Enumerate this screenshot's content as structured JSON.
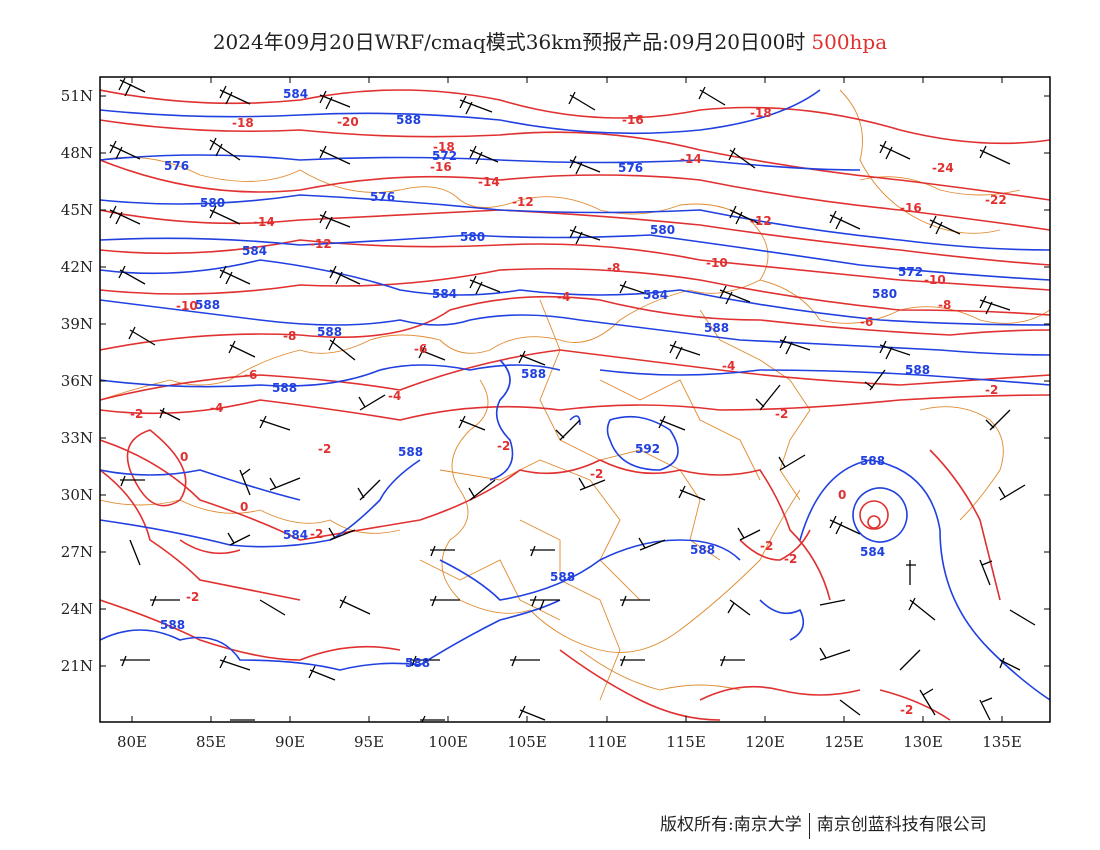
{
  "header": {
    "title": "2024年09月20日WRF/cmaq模式36km预报产品:09月20日00时",
    "level": "500hpa"
  },
  "colors": {
    "height_contour": "#2040e0",
    "temperature_contour": "#e03030",
    "border": "#e08a30",
    "wind_barb": "#000000",
    "frame": "#000000"
  },
  "map": {
    "lon_range": [
      78,
      138
    ],
    "lat_range": [
      18,
      52
    ],
    "lon_ticks": [
      "80E",
      "85E",
      "90E",
      "95E",
      "100E",
      "105E",
      "110E",
      "115E",
      "120E",
      "125E",
      "130E",
      "135E"
    ],
    "lat_ticks": [
      "51N",
      "48N",
      "45N",
      "42N",
      "39N",
      "36N",
      "33N",
      "30N",
      "27N",
      "24N",
      "21N"
    ],
    "height_labels": [
      "584",
      "588",
      "576",
      "572",
      "576",
      "580",
      "580",
      "584",
      "580",
      "584",
      "576",
      "588",
      "584",
      "588",
      "588",
      "592",
      "588",
      "588",
      "588",
      "584",
      "588",
      "588",
      "588",
      "588",
      "588",
      "580",
      "572",
      "584",
      "588"
    ],
    "temperature_labels": [
      "-18",
      "-20",
      "-16",
      "-18",
      "-16",
      "-14",
      "-14",
      "-18",
      "-24",
      "-22",
      "-16",
      "-14",
      "-12",
      "-12",
      "-12",
      "-10",
      "-8",
      "-10",
      "-10",
      "-8",
      "-6",
      "-4",
      "-8",
      "-6",
      "-4",
      "-6",
      "-4",
      "-2",
      "-4",
      "-2",
      "-2",
      "-2",
      "-2",
      "-2",
      "0",
      "0",
      "-2",
      "-2",
      "-2",
      "0",
      "-2",
      "-2"
    ]
  },
  "footer": {
    "copyright": "版权所有:南京大学",
    "company": "南京创蓝科技有限公司"
  }
}
